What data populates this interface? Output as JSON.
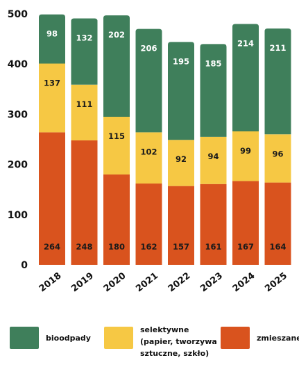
{
  "chart_data": {
    "type": "bar",
    "stacked": true,
    "categories": [
      "2018",
      "2019",
      "2020",
      "2021",
      "2022",
      "2023",
      "2024",
      "2025"
    ],
    "series": [
      {
        "name": "zmieszane",
        "color": "#d9531e",
        "values": [
          264,
          248,
          180,
          162,
          157,
          161,
          167,
          164
        ]
      },
      {
        "name": "selektywne (papier, tworzywa sztuczne, szkło)",
        "color": "#f6c844",
        "values": [
          137,
          111,
          115,
          102,
          92,
          94,
          99,
          96
        ]
      },
      {
        "name": "bioodpady",
        "color": "#3f7f5b",
        "values": [
          98,
          132,
          202,
          206,
          195,
          185,
          214,
          211
        ]
      }
    ],
    "y_ticks": [
      "0",
      "100",
      "200",
      "300",
      "400",
      "500"
    ],
    "ylim": [
      0,
      500
    ],
    "title": "",
    "xlabel": "",
    "ylabel": "",
    "legend_position": "bottom"
  },
  "legend": {
    "bioodpady": [
      "bioodpady"
    ],
    "selektywne": [
      "selektywne",
      "(papier, tworzywa",
      "sztuczne, szkło)"
    ],
    "zmieszane": [
      "zmieszane"
    ]
  }
}
